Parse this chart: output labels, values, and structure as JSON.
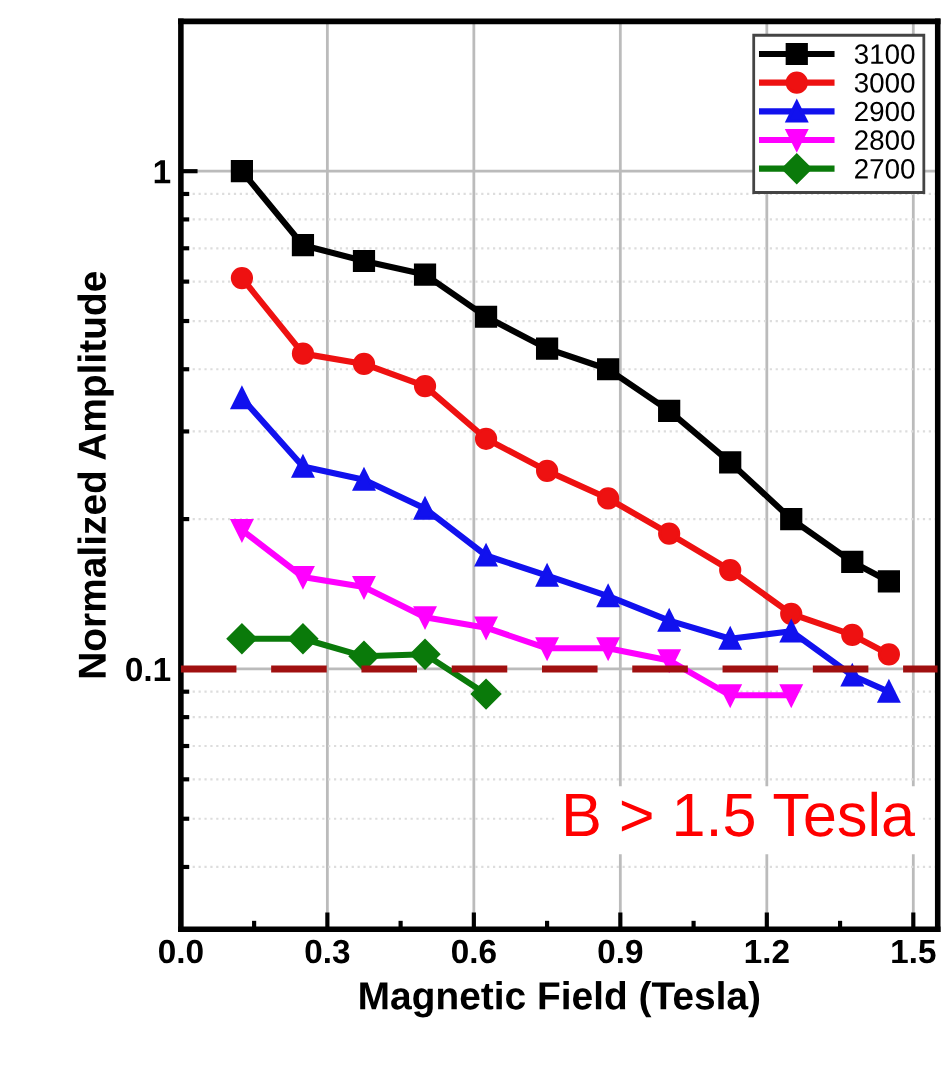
{
  "chart_data": {
    "type": "line",
    "xlabel": "Magnetic Field (Tesla)",
    "ylabel": "Normalized Amplitude",
    "log": "y",
    "xlim": [
      0,
      1.55
    ],
    "ylim": [
      0.03,
      2
    ],
    "xticks": [
      {
        "value": 0,
        "label": "0.0"
      },
      {
        "value": 0.3,
        "label": "0.3"
      },
      {
        "value": 0.6,
        "label": "0.6"
      },
      {
        "value": 0.9,
        "label": "0.9"
      },
      {
        "value": 1.2,
        "label": "1.2"
      },
      {
        "value": 1.5,
        "label": "1.5"
      }
    ],
    "yticks": [
      0.1,
      1
    ],
    "grid": true,
    "legend": "top right",
    "line_style": "solid",
    "series": [
      {
        "name": "3100",
        "color": "#000000",
        "marker": "square",
        "x": [
          0.125,
          0.25,
          0.375,
          0.5,
          0.625,
          0.75,
          0.875,
          1.0,
          1.125,
          1.25,
          1.375,
          1.45
        ],
        "values": [
          1.0,
          0.71,
          0.66,
          0.62,
          0.51,
          0.44,
          0.4,
          0.33,
          0.26,
          0.2,
          0.164,
          0.15
        ]
      },
      {
        "name": "3000",
        "color": "#ee1111",
        "marker": "circle",
        "x": [
          0.125,
          0.25,
          0.375,
          0.5,
          0.625,
          0.75,
          0.875,
          1.0,
          1.125,
          1.25,
          1.375,
          1.45
        ],
        "values": [
          0.61,
          0.43,
          0.41,
          0.37,
          0.29,
          0.25,
          0.22,
          0.187,
          0.158,
          0.129,
          0.117,
          0.107
        ]
      },
      {
        "name": "2900",
        "color": "#1111ee",
        "marker": "triangle",
        "x": [
          0.125,
          0.25,
          0.375,
          0.5,
          0.625,
          0.75,
          0.875,
          1.0,
          1.125,
          1.25,
          1.375,
          1.45
        ],
        "values": [
          0.35,
          0.255,
          0.24,
          0.21,
          0.169,
          0.154,
          0.14,
          0.125,
          0.115,
          0.119,
          0.097,
          0.09
        ]
      },
      {
        "name": "2800",
        "color": "#ff00ff",
        "marker": "triangle_down",
        "x": [
          0.125,
          0.25,
          0.375,
          0.5,
          0.625,
          0.75,
          0.875,
          1.0,
          1.125,
          1.25
        ],
        "values": [
          0.19,
          0.153,
          0.146,
          0.127,
          0.121,
          0.11,
          0.11,
          0.104,
          0.0885,
          0.0885
        ]
      },
      {
        "name": "2700",
        "color": "#0a7a0a",
        "marker": "diamond",
        "x": [
          0.125,
          0.25,
          0.375,
          0.5,
          0.625
        ],
        "values": [
          0.115,
          0.115,
          0.106,
          0.107,
          0.089
        ]
      }
    ],
    "ref_lines": [
      {
        "axis": "y",
        "value": 0.1,
        "color": "#a01010",
        "line_style": "dashed"
      }
    ],
    "annotations": [
      "B > 1.5 Tesla"
    ]
  }
}
